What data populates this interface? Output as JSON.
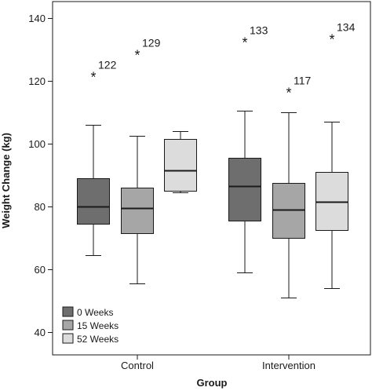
{
  "chart_data": {
    "type": "box",
    "xlabel": "Group",
    "ylabel": "Weight Change (kg)",
    "ylim": [
      40,
      145
    ],
    "yticks": [
      40,
      60,
      80,
      100,
      120,
      140
    ],
    "categories": [
      "Control",
      "Intervention"
    ],
    "series": [
      {
        "name": "0 Weeks",
        "color": "#6e6e6e"
      },
      {
        "name": "15 Weeks",
        "color": "#a6a6a6"
      },
      {
        "name": "52 Weeks",
        "color": "#dcdcdc"
      }
    ],
    "boxes": [
      {
        "group": "Control",
        "series": "0 Weeks",
        "min": 64.5,
        "q1": 74.5,
        "median": 80,
        "q3": 89,
        "max": 106
      },
      {
        "group": "Control",
        "series": "15 Weeks",
        "min": 55.5,
        "q1": 71.5,
        "median": 79.5,
        "q3": 86,
        "max": 102.5
      },
      {
        "group": "Control",
        "series": "52 Weeks",
        "min": 84.5,
        "q1": 85,
        "median": 91.5,
        "q3": 101.5,
        "max": 104
      },
      {
        "group": "Intervention",
        "series": "0 Weeks",
        "min": 59,
        "q1": 75.5,
        "median": 86.5,
        "q3": 95.5,
        "max": 110.5
      },
      {
        "group": "Intervention",
        "series": "15 Weeks",
        "min": 51,
        "q1": 70,
        "median": 79,
        "q3": 87.5,
        "max": 110
      },
      {
        "group": "Intervention",
        "series": "52 Weeks",
        "min": 54,
        "q1": 72.5,
        "median": 81.5,
        "q3": 91,
        "max": 107
      }
    ],
    "outliers": [
      {
        "group": "Control",
        "series": "0 Weeks",
        "value": 122,
        "label": "122"
      },
      {
        "group": "Control",
        "series": "15 Weeks",
        "value": 129,
        "label": "129"
      },
      {
        "group": "Intervention",
        "series": "0 Weeks",
        "value": 133,
        "label": "133"
      },
      {
        "group": "Intervention",
        "series": "15 Weeks",
        "value": 117,
        "label": "117"
      },
      {
        "group": "Intervention",
        "series": "52 Weeks",
        "value": 134,
        "label": "134"
      }
    ],
    "legend_position": "bottom-left",
    "grid": false
  }
}
